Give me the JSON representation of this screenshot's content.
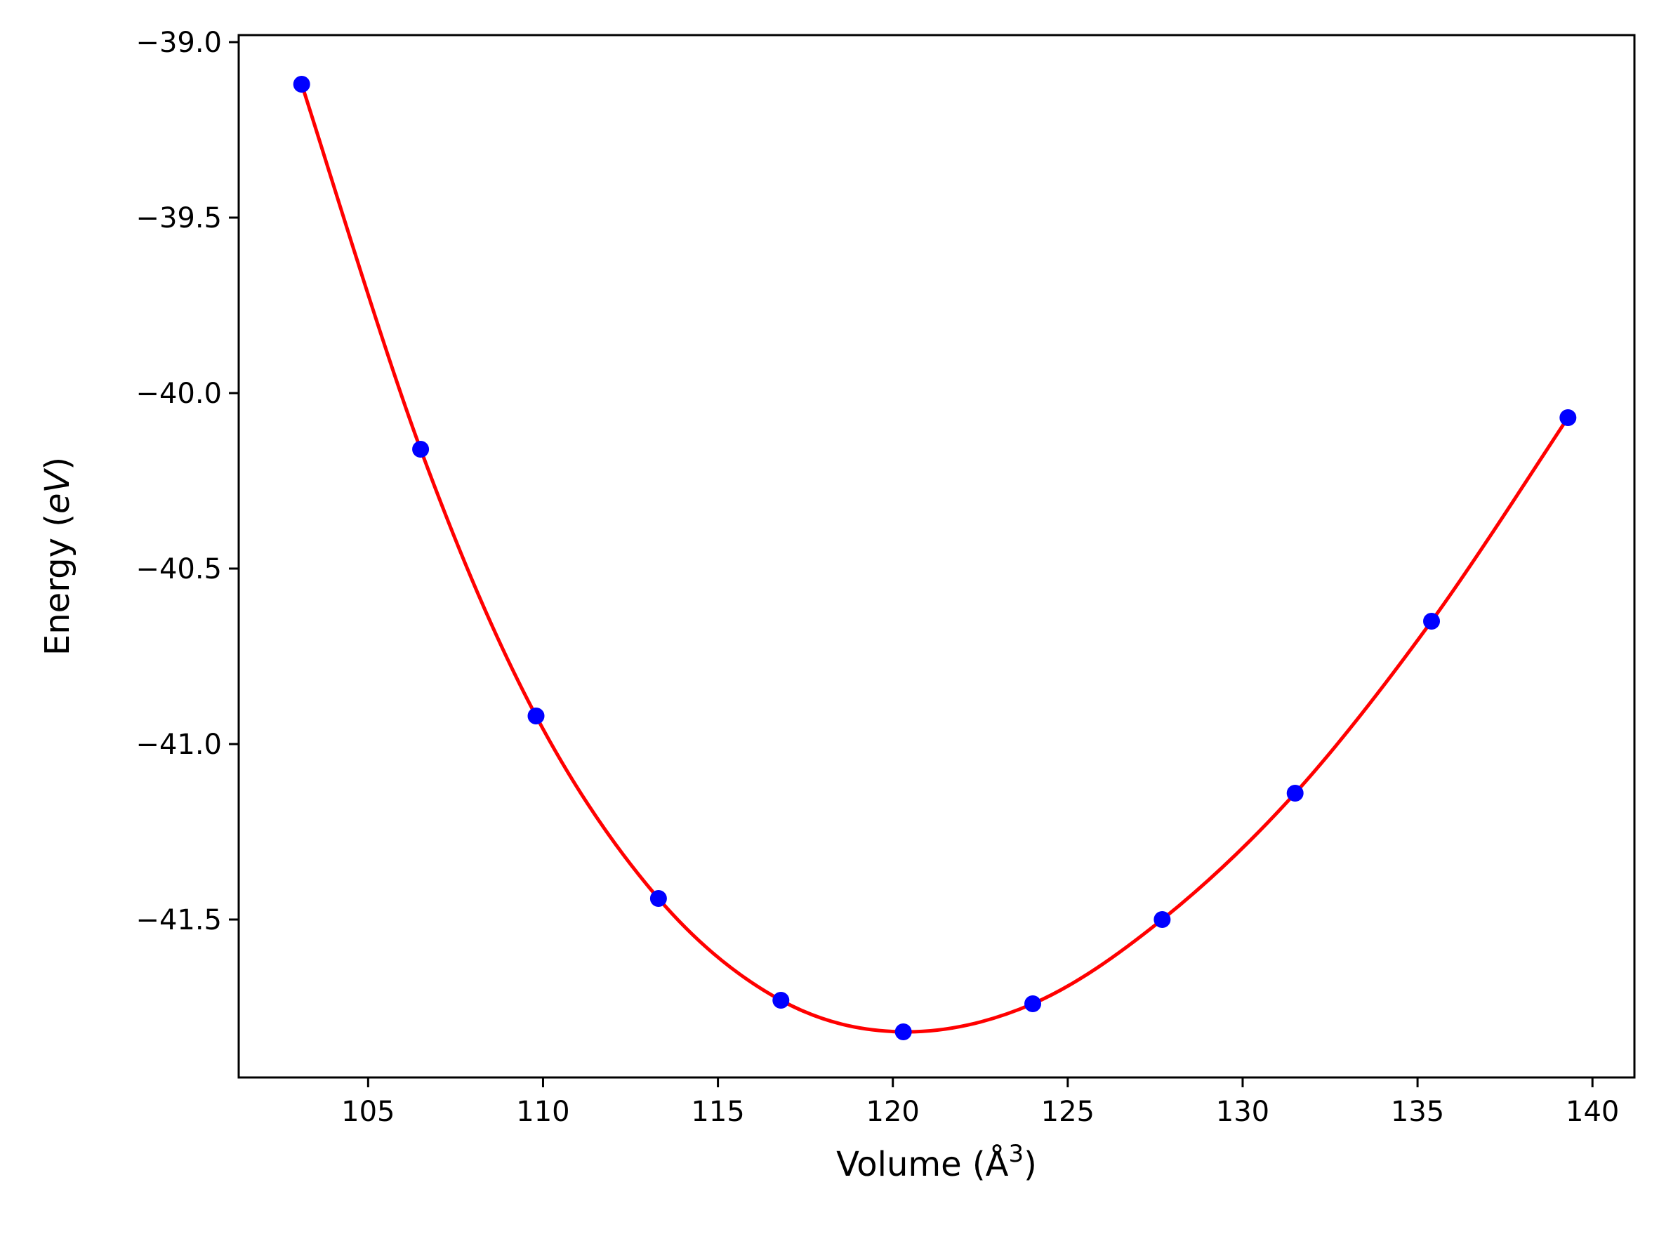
{
  "chart_data": {
    "type": "scatter",
    "title": "",
    "xlabel": "Volume (Å",
    "xlabel_sup": "3",
    "xlabel_close": ")",
    "ylabel_prefix": "Energy (",
    "ylabel_unit": "eV",
    "ylabel_suffix": ")",
    "xlim": [
      101.3,
      141.2
    ],
    "ylim": [
      -41.95,
      -38.98
    ],
    "x_ticks": [
      105,
      110,
      115,
      120,
      125,
      130,
      135,
      140
    ],
    "x_tick_labels": [
      "105",
      "110",
      "115",
      "120",
      "125",
      "130",
      "135",
      "140"
    ],
    "y_ticks": [
      -39.0,
      -39.5,
      -40.0,
      -40.5,
      -41.0,
      -41.5
    ],
    "y_tick_labels": [
      "−39.0",
      "−39.5",
      "−40.0",
      "−40.5",
      "−41.0",
      "−41.5"
    ],
    "grid": false,
    "series": [
      {
        "kind": "points",
        "color": "#0000ff",
        "x": [
          103.1,
          106.5,
          109.8,
          113.3,
          116.8,
          120.3,
          124.0,
          127.7,
          131.5,
          135.4,
          139.3
        ],
        "y": [
          -39.12,
          -40.16,
          -40.92,
          -41.44,
          -41.73,
          -41.82,
          -41.74,
          -41.5,
          -41.14,
          -40.65,
          -40.07
        ]
      },
      {
        "kind": "fit-line",
        "color": "#ff0000",
        "x": [
          103.1,
          106.5,
          109.8,
          113.3,
          116.8,
          120.3,
          124.0,
          127.7,
          131.5,
          135.4,
          139.3
        ],
        "y": [
          -39.12,
          -40.16,
          -40.92,
          -41.44,
          -41.73,
          -41.82,
          -41.74,
          -41.5,
          -41.14,
          -40.65,
          -40.07
        ]
      }
    ]
  }
}
